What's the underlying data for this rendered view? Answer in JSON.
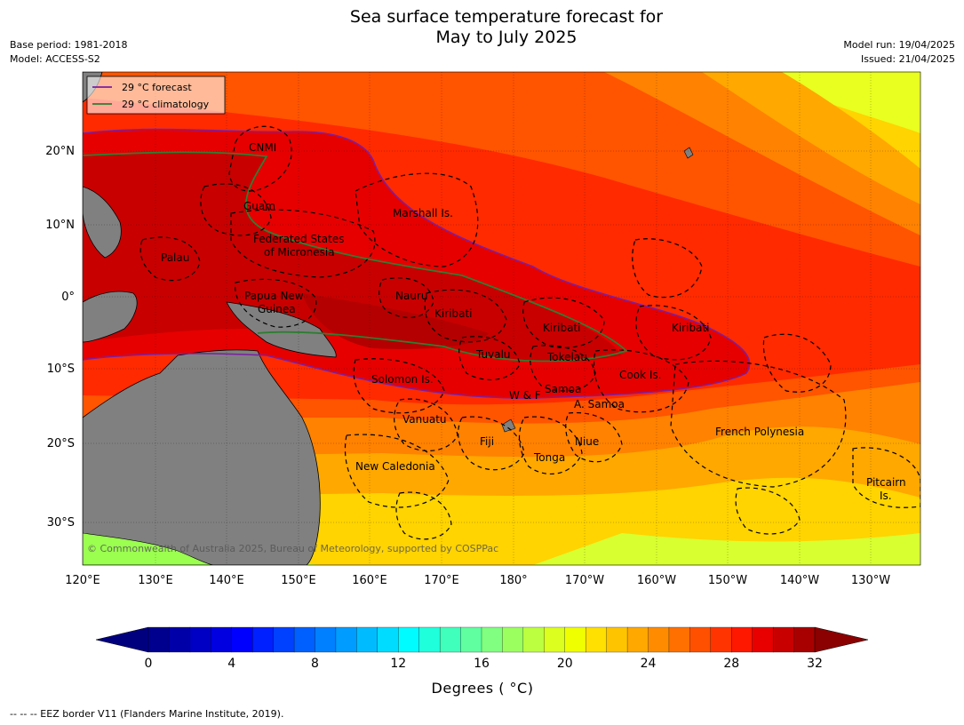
{
  "title": {
    "line1": "Sea surface temperature forecast for",
    "line2": "May to July 2025"
  },
  "meta_left": {
    "base_period": "Base period: 1981-2018",
    "model": "Model: ACCESS-S2"
  },
  "meta_right": {
    "model_run": "Model run: 19/04/2025",
    "issued": "Issued: 21/04/2025"
  },
  "legend": {
    "forecast": {
      "label": "29 °C  forecast",
      "color": "#7b1fa2"
    },
    "climatology": {
      "label": "29 °C  climatology",
      "color": "#2e7d32"
    }
  },
  "axes": {
    "lon_ticks": [
      "120°E",
      "130°E",
      "140°E",
      "150°E",
      "160°E",
      "170°E",
      "180°",
      "170°W",
      "160°W",
      "150°W",
      "140°W",
      "130°W"
    ],
    "lat_ticks": [
      "20°N",
      "10°N",
      "0°",
      "10°S",
      "20°S",
      "30°S"
    ]
  },
  "places": {
    "cnmi": "CNMI",
    "guam": "Guam",
    "marshall": "Marshall Is.",
    "fsm_1": "Federated States",
    "fsm_2": "of Micronesia",
    "palau": "Palau",
    "png_1": "Papua New",
    "png_2": "Guinea",
    "nauru": "Nauru",
    "kiribati_w": "Kiribati",
    "kiribati_c": "Kiribati",
    "kiribati_e": "Kiribati",
    "tuvalu": "Tuvalu",
    "tokelau": "Tokelau",
    "solomon": "Solomon Is.",
    "samoa": "Samoa",
    "wf": "W & F",
    "amsamoa": "A. Samoa",
    "cook": "Cook Is.",
    "vanuatu": "Vanuatu",
    "fiji": "Fiji",
    "niue": "Niue",
    "tonga": "Tonga",
    "newcal": "New Caledonia",
    "frpoly": "French Polynesia",
    "pitcairn_1": "Pitcairn",
    "pitcairn_2": "Is."
  },
  "copyright": "© Commonwealth of Australia 2025, Bureau of Meteorology, supported by COSPPac",
  "colorbar": {
    "ticks": [
      "0",
      "4",
      "8",
      "12",
      "16",
      "20",
      "24",
      "28",
      "32"
    ],
    "label": "Degrees ( °C)",
    "min": 0,
    "max": 32,
    "step": 1,
    "colors": [
      "#00008f",
      "#0000a8",
      "#0000c4",
      "#0000e0",
      "#0000ff",
      "#0020ff",
      "#0040ff",
      "#0060ff",
      "#0080ff",
      "#009cff",
      "#00bcff",
      "#00dcff",
      "#00fcff",
      "#20ffdc",
      "#40ffbc",
      "#60ffa0",
      "#80ff80",
      "#9cff60",
      "#bcff40",
      "#dcff20",
      "#f0ff00",
      "#ffe000",
      "#ffc400",
      "#ffa800",
      "#ff8c00",
      "#ff7000",
      "#ff5000",
      "#ff3400",
      "#ff1800",
      "#e80000",
      "#c80000",
      "#a80000"
    ],
    "under_color": "#00007f",
    "over_color": "#8b0000"
  },
  "footnote": "--  --  -- EEZ border V11 (Flanders Marine Institute, 2019)."
}
